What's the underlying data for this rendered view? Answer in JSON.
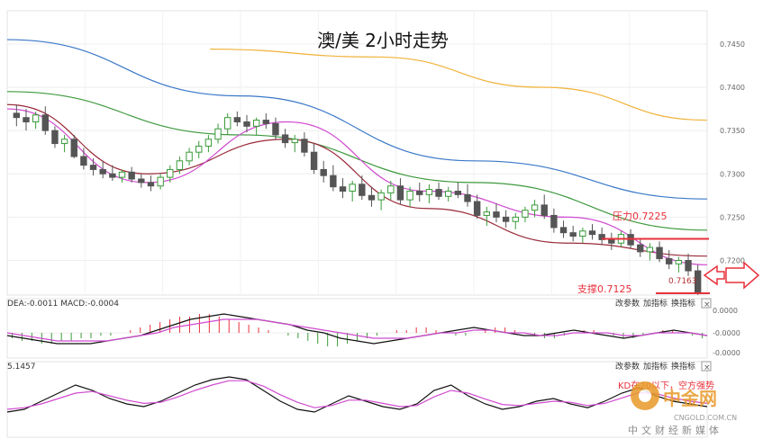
{
  "title": "澳/美 2小时走势",
  "colors": {
    "up": "#3a9a3a",
    "down": "#555555",
    "resistance": "#e8303a",
    "support_label": "#e8303a",
    "ma_blue": "#3a78c8",
    "ma_green": "#3e9a3e",
    "ma_orange": "#f0b23a",
    "ma_maroon": "#9a2a3a",
    "ma_pink": "#d04ad0",
    "ma_gray": "#999999",
    "arrow": "#e8303a",
    "logo": "#e89a2a"
  },
  "chart_data": [
    {
      "type": "candlestick",
      "title": "澳/美 2小时走势",
      "y_ticks": [
        "0.7450",
        "0.7400",
        "0.7350",
        "0.7300",
        "0.7250",
        "0.7200"
      ],
      "ylim": [
        0.716,
        0.748
      ],
      "grid": true,
      "annotations": {
        "resistance_label": "压力0.7225",
        "resistance_value": 0.7225,
        "support_label": "支撑0.7125",
        "last_price_label": "0.7163",
        "last_price_value": 0.7163
      },
      "candles": [
        [
          0.737,
          0.738,
          0.7355,
          0.7365
        ],
        [
          0.7365,
          0.7375,
          0.735,
          0.736
        ],
        [
          0.736,
          0.7372,
          0.7352,
          0.7368
        ],
        [
          0.7368,
          0.7378,
          0.7345,
          0.735
        ],
        [
          0.735,
          0.7355,
          0.733,
          0.7335
        ],
        [
          0.7335,
          0.7345,
          0.7325,
          0.734
        ],
        [
          0.734,
          0.7345,
          0.7318,
          0.732
        ],
        [
          0.732,
          0.733,
          0.7305,
          0.731
        ],
        [
          0.731,
          0.7318,
          0.7298,
          0.7305
        ],
        [
          0.7305,
          0.7315,
          0.7295,
          0.73
        ],
        [
          0.73,
          0.731,
          0.7292,
          0.7296
        ],
        [
          0.7296,
          0.7305,
          0.729,
          0.7302
        ],
        [
          0.7302,
          0.7308,
          0.729,
          0.7294
        ],
        [
          0.7294,
          0.73,
          0.7284,
          0.729
        ],
        [
          0.729,
          0.7298,
          0.728,
          0.7286
        ],
        [
          0.7286,
          0.73,
          0.7282,
          0.7296
        ],
        [
          0.7296,
          0.731,
          0.729,
          0.7305
        ],
        [
          0.7305,
          0.732,
          0.73,
          0.7315
        ],
        [
          0.7315,
          0.733,
          0.731,
          0.7325
        ],
        [
          0.7325,
          0.7338,
          0.7318,
          0.7332
        ],
        [
          0.7332,
          0.7345,
          0.7325,
          0.734
        ],
        [
          0.734,
          0.7358,
          0.7335,
          0.7352
        ],
        [
          0.7352,
          0.737,
          0.7345,
          0.7365
        ],
        [
          0.7365,
          0.7372,
          0.7355,
          0.736
        ],
        [
          0.736,
          0.7368,
          0.7348,
          0.7355
        ],
        [
          0.7355,
          0.7365,
          0.7345,
          0.7362
        ],
        [
          0.7362,
          0.737,
          0.7352,
          0.7358
        ],
        [
          0.7358,
          0.7365,
          0.734,
          0.7345
        ],
        [
          0.7345,
          0.7352,
          0.733,
          0.7336
        ],
        [
          0.7336,
          0.7345,
          0.7325,
          0.734
        ],
        [
          0.734,
          0.7348,
          0.732,
          0.7325
        ],
        [
          0.7325,
          0.7335,
          0.73,
          0.7305
        ],
        [
          0.7305,
          0.7315,
          0.729,
          0.7298
        ],
        [
          0.7298,
          0.731,
          0.728,
          0.7285
        ],
        [
          0.7285,
          0.7295,
          0.7272,
          0.728
        ],
        [
          0.728,
          0.7292,
          0.7268,
          0.7288
        ],
        [
          0.7288,
          0.7298,
          0.727,
          0.7275
        ],
        [
          0.7275,
          0.7285,
          0.7262,
          0.727
        ],
        [
          0.727,
          0.7282,
          0.7258,
          0.7278
        ],
        [
          0.7278,
          0.7292,
          0.727,
          0.7286
        ],
        [
          0.7286,
          0.7295,
          0.7265,
          0.727
        ],
        [
          0.727,
          0.7285,
          0.7262,
          0.728
        ],
        [
          0.728,
          0.729,
          0.7268,
          0.7276
        ],
        [
          0.7276,
          0.7288,
          0.7266,
          0.7282
        ],
        [
          0.7282,
          0.729,
          0.727,
          0.7274
        ],
        [
          0.7274,
          0.7285,
          0.7268,
          0.728
        ],
        [
          0.728,
          0.729,
          0.7272,
          0.7276
        ],
        [
          0.7276,
          0.7288,
          0.7262,
          0.7268
        ],
        [
          0.7268,
          0.7276,
          0.7248,
          0.7252
        ],
        [
          0.7252,
          0.7262,
          0.724,
          0.7256
        ],
        [
          0.7256,
          0.7266,
          0.7244,
          0.725
        ],
        [
          0.725,
          0.7258,
          0.7238,
          0.7245
        ],
        [
          0.7245,
          0.7255,
          0.7236,
          0.725
        ],
        [
          0.725,
          0.7262,
          0.7244,
          0.7258
        ],
        [
          0.7258,
          0.727,
          0.725,
          0.7264
        ],
        [
          0.7264,
          0.7276,
          0.7248,
          0.7252
        ],
        [
          0.7252,
          0.726,
          0.7232,
          0.7238
        ],
        [
          0.7238,
          0.7246,
          0.7226,
          0.7232
        ],
        [
          0.7232,
          0.724,
          0.7222,
          0.7228
        ],
        [
          0.7228,
          0.7238,
          0.722,
          0.7234
        ],
        [
          0.7234,
          0.7242,
          0.7224,
          0.723
        ],
        [
          0.723,
          0.7238,
          0.7218,
          0.7224
        ],
        [
          0.7224,
          0.7232,
          0.7212,
          0.722
        ],
        [
          0.722,
          0.7234,
          0.7216,
          0.723
        ],
        [
          0.723,
          0.7236,
          0.7214,
          0.7218
        ],
        [
          0.7218,
          0.7226,
          0.7204,
          0.721
        ],
        [
          0.721,
          0.722,
          0.72,
          0.7215
        ],
        [
          0.7215,
          0.7222,
          0.7198,
          0.7202
        ],
        [
          0.7202,
          0.7212,
          0.719,
          0.7196
        ],
        [
          0.7196,
          0.7204,
          0.7186,
          0.72
        ],
        [
          0.72,
          0.7208,
          0.7182,
          0.7188
        ],
        [
          0.7188,
          0.7195,
          0.716,
          0.7163
        ]
      ],
      "ma_lines": [
        {
          "color": "#3a78c8",
          "values": [
            0.7455,
            0.739,
            0.7315,
            0.7271
          ]
        },
        {
          "color": "#3e9a3e",
          "values": [
            0.7395,
            0.7345,
            0.729,
            0.7235
          ]
        },
        {
          "color": "#f0b23a",
          "values": [
            0.7444,
            0.7435,
            0.74,
            0.7362
          ],
          "start": 0.29
        },
        {
          "color": "#9a2a3a",
          "values": [
            0.738,
            0.73,
            0.734,
            0.726,
            0.722,
            0.7205
          ]
        },
        {
          "color": "#d04ad0",
          "values": [
            0.7375,
            0.729,
            0.736,
            0.728,
            0.725,
            0.7195
          ]
        }
      ]
    },
    {
      "type": "macd",
      "label": "DEA:-0.0011  MACD:-0.0004",
      "y_ticks": [
        "0.0000",
        "-0.0000",
        "-0.0000"
      ],
      "buttons": [
        "改参数",
        "加指标",
        "换指标"
      ],
      "histogram": [
        -2,
        -3,
        -3,
        -4,
        -4,
        -3,
        -3,
        -2,
        -2,
        -1,
        -1,
        0,
        1,
        2,
        3,
        4,
        5,
        6,
        6,
        7,
        7,
        6,
        5,
        4,
        3,
        2,
        1,
        0,
        -1,
        -2,
        -3,
        -4,
        -5,
        -5,
        -4,
        -3,
        -2,
        -1,
        0,
        1,
        1,
        2,
        2,
        1,
        0,
        -1,
        -1,
        0,
        1,
        2,
        2,
        1,
        0,
        -1,
        -2,
        -2,
        -1,
        0,
        1,
        1,
        0,
        -1,
        -2,
        -2,
        -1,
        0,
        1,
        1,
        0,
        -1,
        -2
      ],
      "dif": [
        -1,
        -2,
        -3,
        -4,
        -4,
        -4,
        -3,
        -2,
        -1,
        1,
        3,
        5,
        6,
        7,
        6,
        5,
        4,
        3,
        1,
        0,
        -2,
        -3,
        -4,
        -3,
        -2,
        -1,
        0,
        1,
        2,
        1,
        0,
        -1,
        -1,
        0,
        1,
        0,
        -1,
        -2,
        -1,
        0,
        1,
        0,
        -1
      ],
      "dea": [
        0,
        -1,
        -2,
        -3,
        -3,
        -3,
        -3,
        -2,
        -1,
        0,
        2,
        3,
        4,
        5,
        5,
        5,
        4,
        3,
        2,
        1,
        0,
        -1,
        -2,
        -2,
        -2,
        -1,
        0,
        0,
        1,
        1,
        0,
        0,
        -1,
        -1,
        0,
        0,
        0,
        -1,
        -1,
        0,
        0,
        0,
        -1
      ]
    },
    {
      "type": "oscillator",
      "label": "5.1457",
      "buttons": [
        "改参数",
        "加指标",
        "换指标"
      ],
      "note": "KD在20以下，空方强势",
      "line_k": [
        20,
        25,
        40,
        55,
        70,
        60,
        45,
        35,
        30,
        40,
        55,
        70,
        80,
        85,
        80,
        60,
        40,
        25,
        20,
        35,
        50,
        40,
        30,
        25,
        35,
        60,
        70,
        50,
        35,
        25,
        30,
        40,
        45,
        35,
        28,
        40,
        55,
        65,
        50,
        40,
        35,
        30
      ],
      "line_d": [
        25,
        28,
        35,
        45,
        55,
        58,
        50,
        42,
        36,
        38,
        48,
        60,
        70,
        78,
        78,
        68,
        52,
        38,
        28,
        32,
        42,
        42,
        36,
        30,
        32,
        48,
        60,
        55,
        44,
        34,
        32,
        36,
        40,
        38,
        32,
        36,
        46,
        56,
        54,
        46,
        40,
        36
      ]
    }
  ],
  "watermark": {
    "name": "中金网",
    "sub": "中文财经新媒体",
    "url": "CNGOLD.COM.CN"
  }
}
